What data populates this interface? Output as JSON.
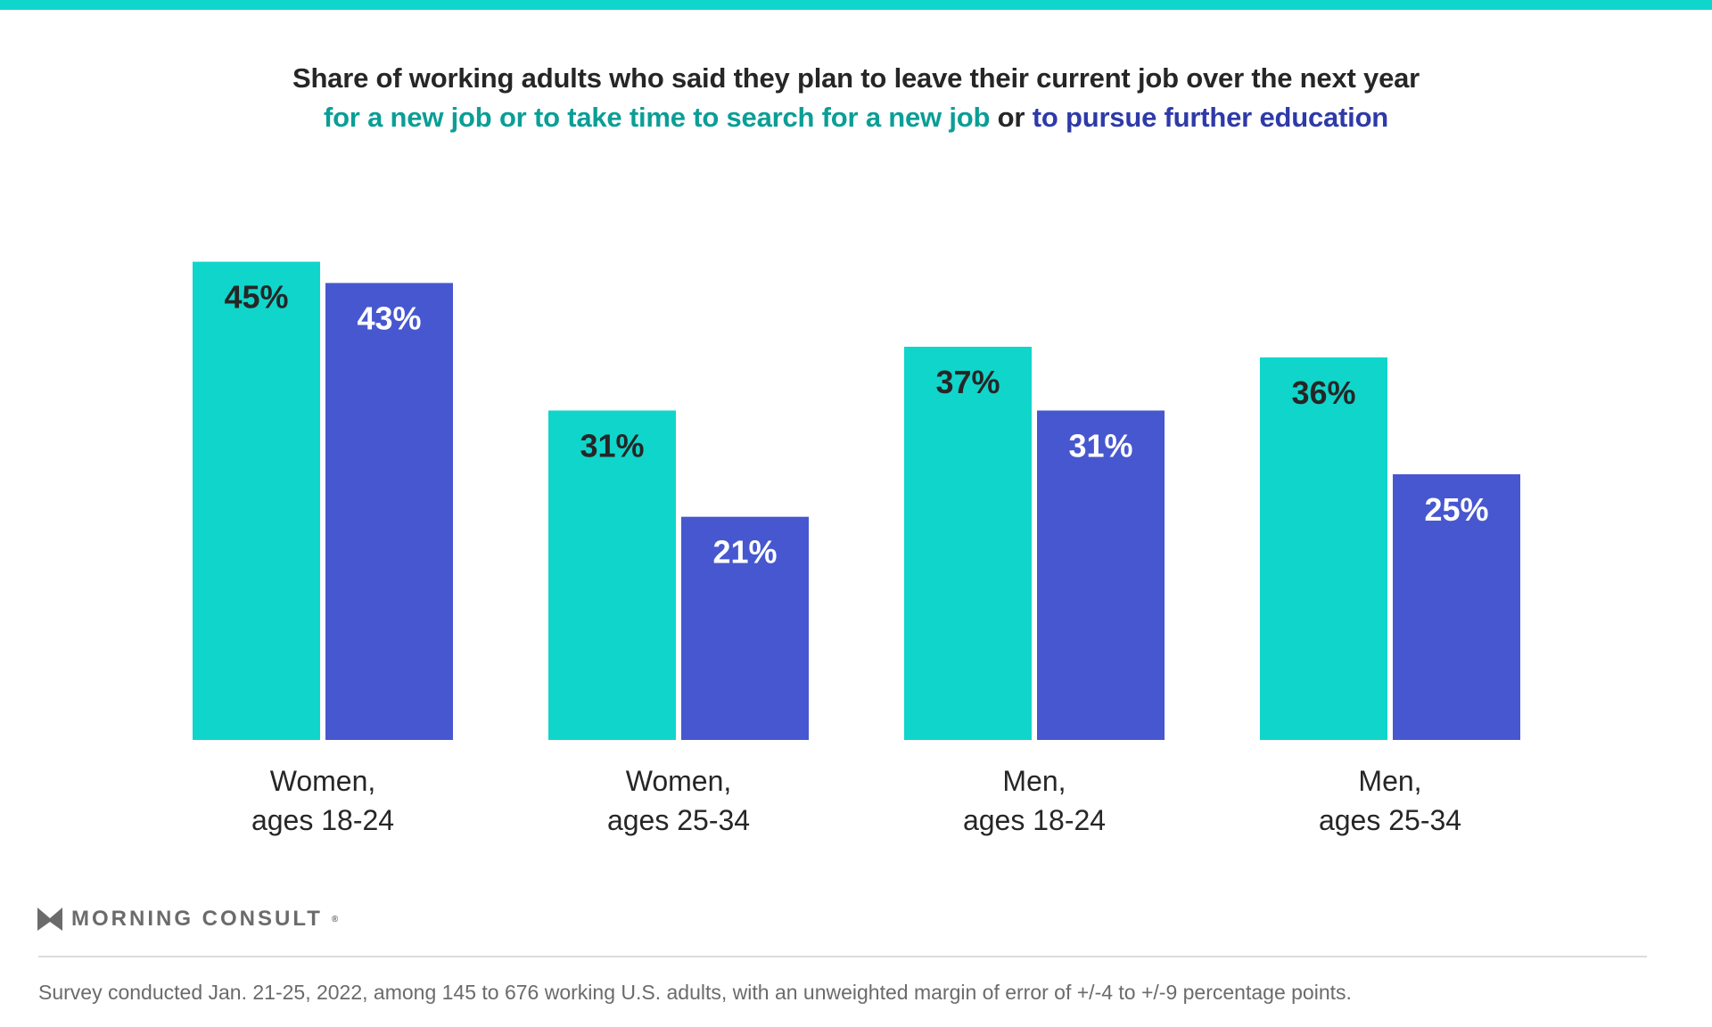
{
  "title": {
    "line1": "Share of working adults who said they plan to leave their current job over the next year",
    "part_teal": "for a new job or to take time to search for a new job",
    "part_or": " or ",
    "part_blue": "to pursue further education"
  },
  "colors": {
    "teal": "#10d5cb",
    "blue": "#4757cf",
    "title_teal": "#0a9e96",
    "title_blue": "#2e3aa8"
  },
  "chart_data": {
    "type": "bar",
    "categories": [
      "Women,\nages 18-24",
      "Women,\nages 25-34",
      "Men,\nages 18-24",
      "Men,\nages 25-34"
    ],
    "category_lines": [
      [
        "Women,",
        "ages 18-24"
      ],
      [
        "Women,",
        "ages 25-34"
      ],
      [
        "Men,",
        "ages 18-24"
      ],
      [
        "Men,",
        "ages 25-34"
      ]
    ],
    "series": [
      {
        "name": "for a new job or to take time to search for a new job",
        "color": "#10d5cb",
        "values": [
          45,
          31,
          37,
          36
        ],
        "labels": [
          "45%",
          "31%",
          "37%",
          "36%"
        ]
      },
      {
        "name": "to pursue further education",
        "color": "#4757cf",
        "values": [
          43,
          21,
          31,
          25
        ],
        "labels": [
          "43%",
          "21%",
          "31%",
          "25%"
        ]
      }
    ],
    "unit": "%",
    "ylim": [
      0,
      45
    ],
    "grid": false,
    "legend": "title"
  },
  "brand": {
    "name": "MORNING CONSULT",
    "registered": "®"
  },
  "footnote": "Survey conducted Jan. 21-25, 2022, among 145 to 676 working U.S. adults, with an unweighted margin of error of +/-4 to +/-9 percentage points."
}
